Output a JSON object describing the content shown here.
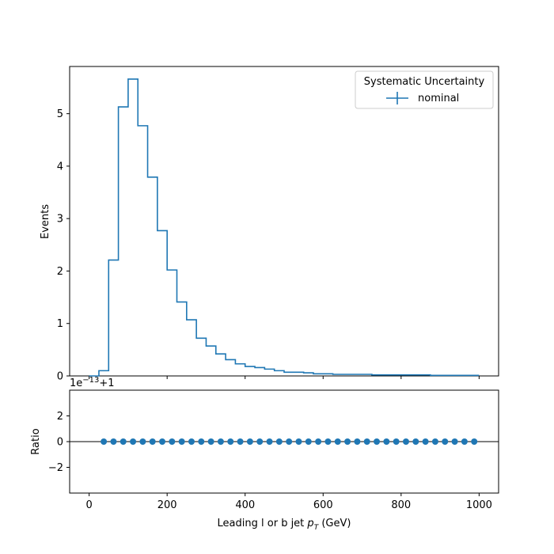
{
  "chart_data": [
    {
      "type": "line",
      "step": true,
      "ylabel": "Events",
      "xlim": [
        -50,
        1050
      ],
      "ylim": [
        0,
        5.9
      ],
      "yticks": [
        0,
        1,
        2,
        3,
        4,
        5
      ],
      "xticks": [
        0,
        200,
        400,
        600,
        800,
        1000
      ],
      "bin_edges": [
        0,
        25,
        50,
        75,
        100,
        125,
        150,
        175,
        200,
        225,
        250,
        275,
        300,
        325,
        350,
        375,
        400,
        425,
        450,
        475,
        500,
        525,
        550,
        575,
        600,
        625,
        650,
        675,
        700,
        725,
        750,
        775,
        800,
        825,
        850,
        875,
        900,
        925,
        950,
        975,
        1000
      ],
      "series": [
        {
          "name": "nominal",
          "values": [
            0.0,
            0.1,
            2.21,
            5.13,
            5.66,
            4.77,
            3.79,
            2.77,
            2.02,
            1.41,
            1.07,
            0.72,
            0.57,
            0.42,
            0.31,
            0.23,
            0.18,
            0.16,
            0.13,
            0.1,
            0.07,
            0.07,
            0.06,
            0.04,
            0.04,
            0.03,
            0.03,
            0.03,
            0.03,
            0.02,
            0.02,
            0.02,
            0.02,
            0.02,
            0.02,
            0.01,
            0.01,
            0.01,
            0.01,
            0.01
          ]
        }
      ],
      "legend": {
        "title": "Systematic Uncertainty",
        "placement": "top-right"
      },
      "color": "#1f77b4"
    },
    {
      "type": "scatter",
      "ylabel": "Ratio",
      "xlabel": "Leading l or b jet p_T (GeV)",
      "xlabel_parts": {
        "main": "Leading l or b jet ",
        "symbol": "p",
        "subscript": "T",
        "unit": " (GeV)"
      },
      "offset_text": {
        "base": "1e",
        "exponent": "−13",
        "suffix": "+1"
      },
      "xlim": [
        -50,
        1050
      ],
      "ylim": [
        -4,
        4
      ],
      "yticks": [
        -2,
        0,
        2
      ],
      "ytick_labels": [
        "−2",
        "0",
        "2"
      ],
      "xticks": [
        0,
        200,
        400,
        600,
        800,
        1000
      ],
      "reference_line": 0,
      "x": [
        37.5,
        62.5,
        87.5,
        112.5,
        137.5,
        162.5,
        187.5,
        212.5,
        237.5,
        262.5,
        287.5,
        312.5,
        337.5,
        362.5,
        387.5,
        412.5,
        437.5,
        462.5,
        487.5,
        512.5,
        537.5,
        562.5,
        587.5,
        612.5,
        637.5,
        662.5,
        687.5,
        712.5,
        737.5,
        762.5,
        787.5,
        812.5,
        837.5,
        862.5,
        887.5,
        912.5,
        937.5,
        962.5,
        987.5
      ],
      "y": [
        0,
        0,
        0,
        0,
        0,
        0,
        0,
        0,
        0,
        0,
        0,
        0,
        0,
        0,
        0,
        0,
        0,
        0,
        0,
        0,
        0,
        0,
        0,
        0,
        0,
        0,
        0,
        0,
        0,
        0,
        0,
        0,
        0,
        0,
        0,
        0,
        0,
        0,
        0
      ],
      "color": "#1f77b4"
    }
  ]
}
